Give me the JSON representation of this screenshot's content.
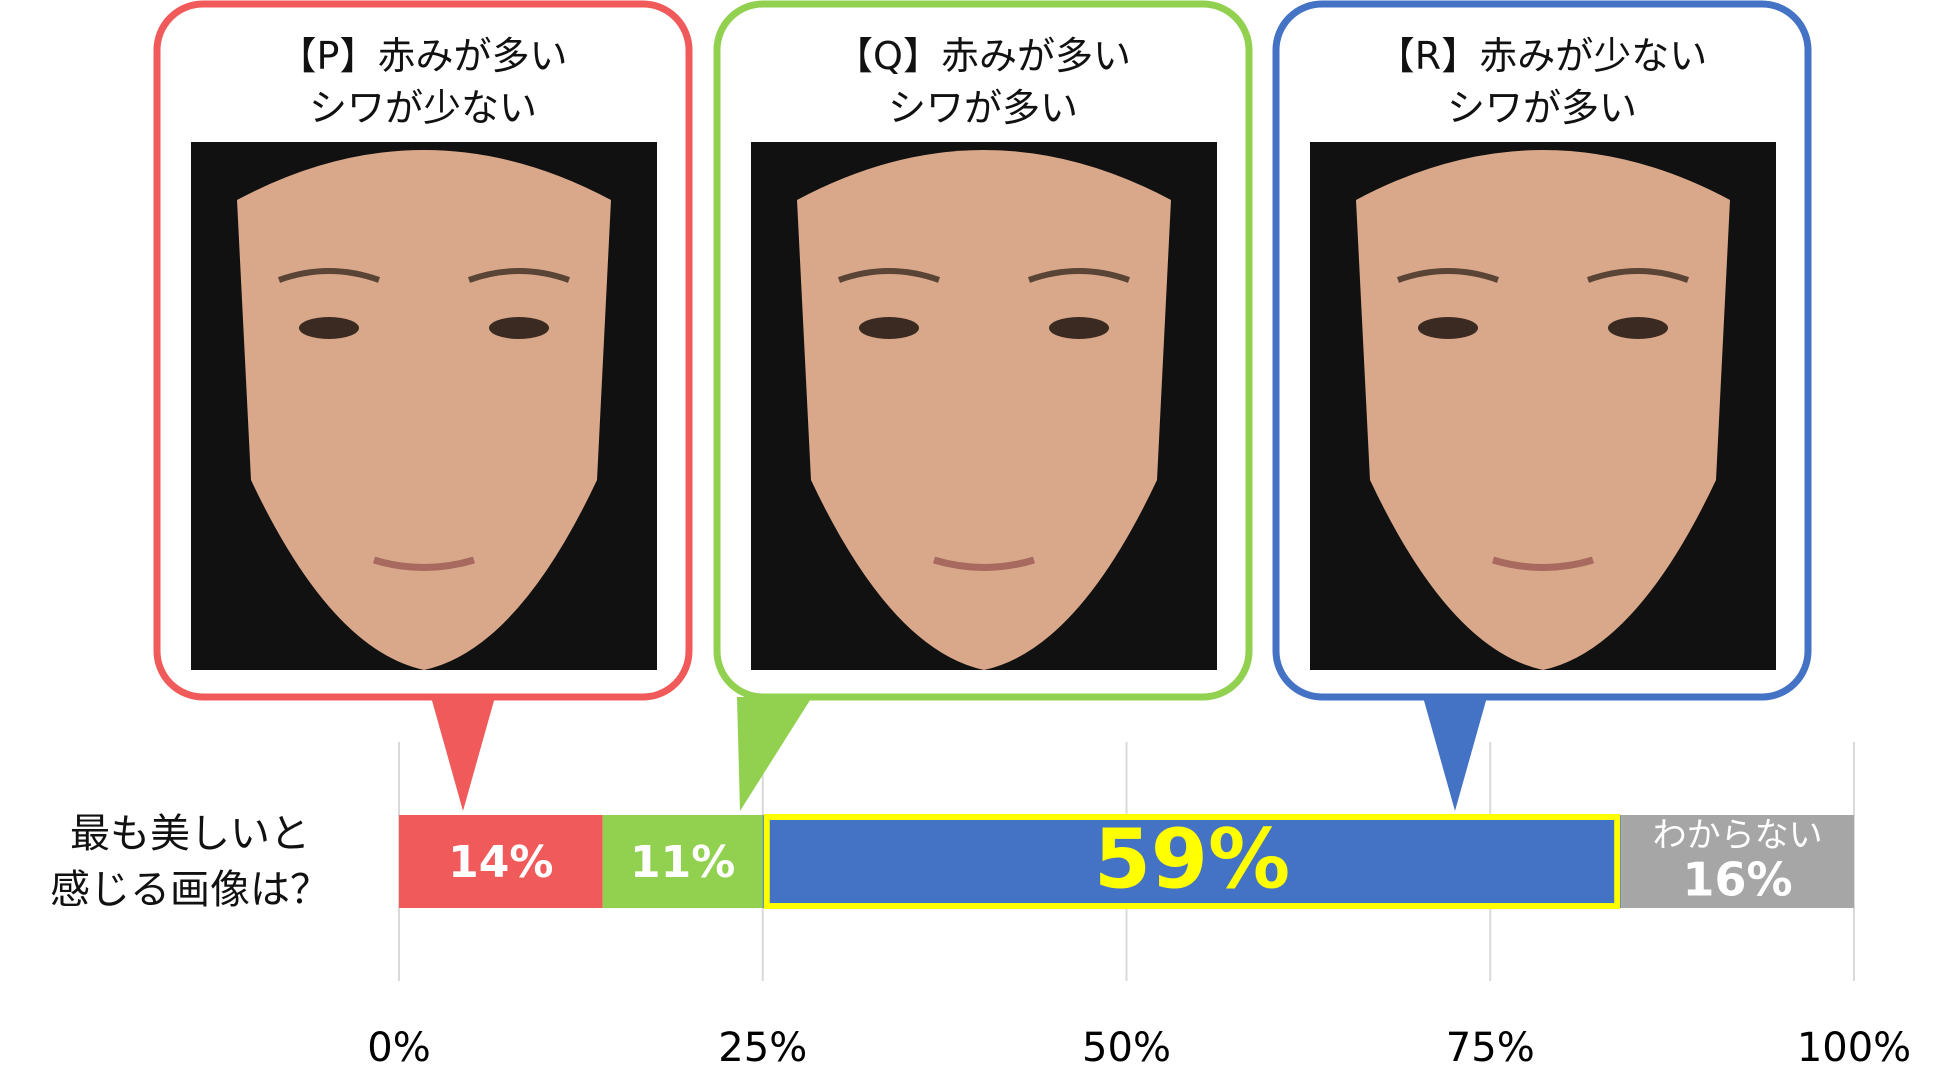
{
  "chart_data": {
    "type": "stacked-bar",
    "categories": [
      "最も美しいと\n感じる画像は？"
    ],
    "series": [
      {
        "name": "【P】赤みが多い\nシワが少ない",
        "color": "#f05a5a",
        "values": [
          14
        ],
        "value_labels": [
          "14%"
        ]
      },
      {
        "name": "【Q】赤みが多い\nシワが多い",
        "color": "#92d050",
        "values": [
          11
        ],
        "value_labels": [
          "11%"
        ]
      },
      {
        "name": "【R】赤みが少ない\nシワが多い",
        "color": "#4472c4",
        "values": [
          59
        ],
        "value_labels": [
          "59%"
        ]
      },
      {
        "name": "わからない",
        "color": "#a6a6a6",
        "values": [
          16
        ],
        "value_labels": [
          "16%"
        ]
      }
    ],
    "xlim": [
      0,
      100
    ],
    "xticks": [
      {
        "value": 0,
        "label": "0%"
      },
      {
        "value": 25,
        "label": "25%"
      },
      {
        "value": 50,
        "label": "50%"
      },
      {
        "value": 75,
        "label": "75%"
      },
      {
        "value": 100,
        "label": "100%"
      }
    ],
    "grid": true
  }
}
